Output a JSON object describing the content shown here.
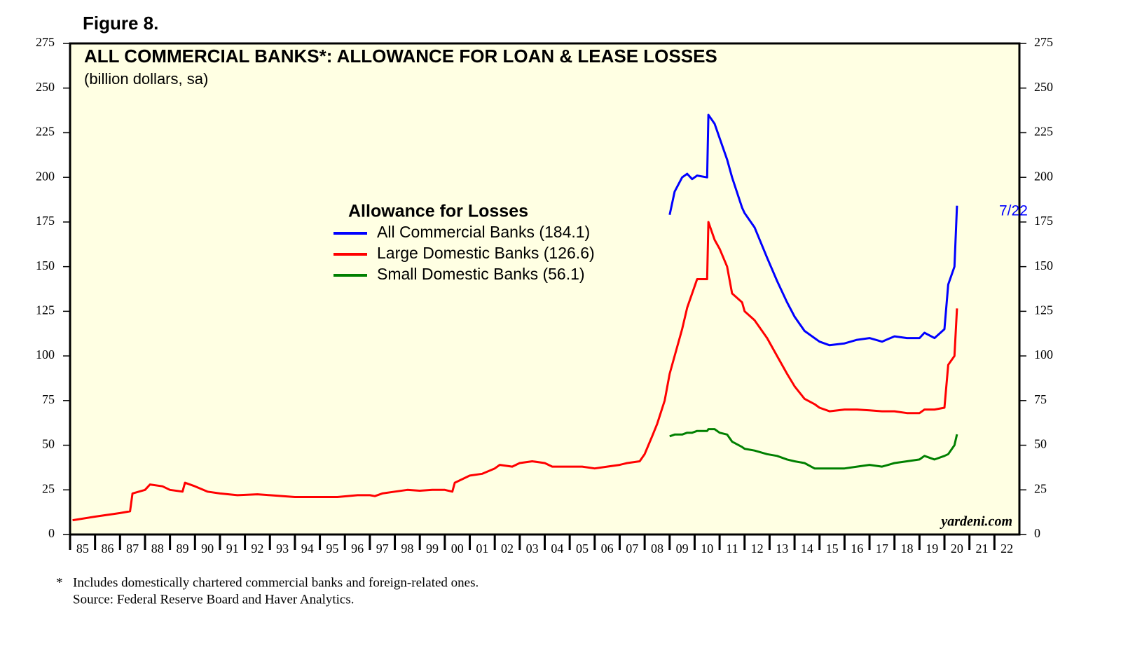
{
  "chart_data": {
    "type": "line",
    "figure_label": "Figure 8.",
    "title": "ALL COMMERCIAL BANKS*: ALLOWANCE FOR LOAN & LEASE LOSSES",
    "subtitle": "(billion dollars, sa)",
    "legend_title": "Allowance for Losses",
    "annotation": "7/22",
    "watermark": "yardeni.com",
    "footnotes": [
      "*",
      "Includes domestically chartered commercial banks and foreign-related ones.",
      "Source: Federal Reserve Board and Haver Analytics."
    ],
    "background": "#ffffe3",
    "xlim": [
      1985,
      2023
    ],
    "xticks": [
      {
        "value": 1985,
        "label": "85"
      },
      {
        "value": 1986,
        "label": "86"
      },
      {
        "value": 1987,
        "label": "87"
      },
      {
        "value": 1988,
        "label": "88"
      },
      {
        "value": 1989,
        "label": "89"
      },
      {
        "value": 1990,
        "label": "90"
      },
      {
        "value": 1991,
        "label": "91"
      },
      {
        "value": 1992,
        "label": "92"
      },
      {
        "value": 1993,
        "label": "93"
      },
      {
        "value": 1994,
        "label": "94"
      },
      {
        "value": 1995,
        "label": "95"
      },
      {
        "value": 1996,
        "label": "96"
      },
      {
        "value": 1997,
        "label": "97"
      },
      {
        "value": 1998,
        "label": "98"
      },
      {
        "value": 1999,
        "label": "99"
      },
      {
        "value": 2000,
        "label": "00"
      },
      {
        "value": 2001,
        "label": "01"
      },
      {
        "value": 2002,
        "label": "02"
      },
      {
        "value": 2003,
        "label": "03"
      },
      {
        "value": 2004,
        "label": "04"
      },
      {
        "value": 2005,
        "label": "05"
      },
      {
        "value": 2006,
        "label": "06"
      },
      {
        "value": 2007,
        "label": "07"
      },
      {
        "value": 2008,
        "label": "08"
      },
      {
        "value": 2009,
        "label": "09"
      },
      {
        "value": 2010,
        "label": "10"
      },
      {
        "value": 2011,
        "label": "11"
      },
      {
        "value": 2012,
        "label": "12"
      },
      {
        "value": 2013,
        "label": "13"
      },
      {
        "value": 2014,
        "label": "14"
      },
      {
        "value": 2015,
        "label": "15"
      },
      {
        "value": 2016,
        "label": "16"
      },
      {
        "value": 2017,
        "label": "17"
      },
      {
        "value": 2018,
        "label": "18"
      },
      {
        "value": 2019,
        "label": "19"
      },
      {
        "value": 2020,
        "label": "20"
      },
      {
        "value": 2021,
        "label": "21"
      },
      {
        "value": 2022,
        "label": "22"
      }
    ],
    "ylim": [
      0,
      275
    ],
    "yticks": [
      0,
      25,
      50,
      75,
      100,
      125,
      150,
      175,
      200,
      225,
      250,
      275
    ],
    "x": [
      1985.1,
      1986,
      1987,
      1987.4,
      1987.5,
      1988,
      1988.2,
      1988.7,
      1989,
      1989.5,
      1989.6,
      1990,
      1990.5,
      1991,
      1991.7,
      1992.5,
      1993,
      1994,
      1995,
      1995.7,
      1996.5,
      1997,
      1997.2,
      1997.5,
      1998,
      1998.5,
      1999,
      1999.5,
      2000,
      2000.3,
      2000.4,
      2000.7,
      2001,
      2001.5,
      2002,
      2002.2,
      2002.7,
      2003,
      2003.5,
      2004,
      2004.3,
      2005,
      2005.5,
      2006,
      2006.5,
      2007,
      2007.3,
      2007.8,
      2008,
      2008.3,
      2008.5,
      2008.8,
      2009,
      2009.2,
      2009.5,
      2009.7,
      2009.9,
      2010.1,
      2010.5,
      2010.55,
      2010.8,
      2011,
      2011.3,
      2011.5,
      2011.9,
      2012,
      2012.4,
      2012.9,
      2013.3,
      2013.7,
      2014,
      2014.4,
      2014.8,
      2015,
      2015.4,
      2016,
      2016.5,
      2017,
      2017.5,
      2018,
      2018.5,
      2019,
      2019.2,
      2019.6,
      2020,
      2020.15,
      2020.4,
      2020.5
    ],
    "series": [
      {
        "name": "All Commercial Banks (184.1)",
        "color": "#0000ff",
        "values": [
          null,
          null,
          null,
          null,
          null,
          null,
          null,
          null,
          null,
          null,
          null,
          null,
          null,
          null,
          null,
          null,
          null,
          null,
          null,
          null,
          null,
          null,
          null,
          null,
          null,
          null,
          null,
          null,
          null,
          null,
          null,
          null,
          null,
          null,
          null,
          null,
          null,
          null,
          null,
          null,
          null,
          null,
          null,
          null,
          null,
          null,
          null,
          null,
          null,
          null,
          null,
          null,
          179,
          192,
          200,
          202,
          199,
          201,
          200,
          235,
          230,
          222,
          210,
          200,
          183,
          180,
          172,
          155,
          142,
          130,
          122,
          114,
          110,
          108,
          106,
          107,
          109,
          110,
          108,
          111,
          110,
          110,
          113,
          110,
          115,
          140,
          150,
          184.1
        ]
      },
      {
        "name": "Large Domestic Banks (126.6)",
        "color": "#ff0000",
        "values": [
          8,
          10,
          12,
          13,
          23,
          25,
          28,
          27,
          25,
          24,
          29,
          27,
          24,
          23,
          22,
          22.5,
          22,
          21,
          21,
          21,
          22,
          22,
          21.5,
          23,
          24,
          25,
          24.5,
          25,
          25,
          24,
          29,
          31,
          33,
          34,
          37,
          39,
          38,
          40,
          41,
          40,
          38,
          38,
          38,
          37,
          38,
          39,
          40,
          41,
          45,
          55,
          62,
          75,
          90,
          100,
          115,
          127,
          135,
          143,
          143,
          175,
          165,
          160,
          150,
          135,
          130,
          125,
          120,
          110,
          100,
          90,
          83,
          76,
          73,
          71,
          69,
          70,
          70,
          69.5,
          69,
          69,
          68,
          68,
          70,
          70,
          71,
          95,
          100,
          126.6
        ]
      },
      {
        "name": "Small Domestic Banks (56.1)",
        "color": "#008000",
        "values": [
          null,
          null,
          null,
          null,
          null,
          null,
          null,
          null,
          null,
          null,
          null,
          null,
          null,
          null,
          null,
          null,
          null,
          null,
          null,
          null,
          null,
          null,
          null,
          null,
          null,
          null,
          null,
          null,
          null,
          null,
          null,
          null,
          null,
          null,
          null,
          null,
          null,
          null,
          null,
          null,
          null,
          null,
          null,
          null,
          null,
          null,
          null,
          null,
          null,
          null,
          null,
          null,
          55,
          56,
          56,
          57,
          57,
          58,
          58,
          59,
          59,
          57,
          56,
          52,
          49,
          48,
          47,
          45,
          44,
          42,
          41,
          40,
          37,
          37,
          37,
          37,
          38,
          39,
          38,
          40,
          41,
          42,
          44,
          42,
          44,
          45,
          50,
          56.1
        ]
      }
    ]
  }
}
